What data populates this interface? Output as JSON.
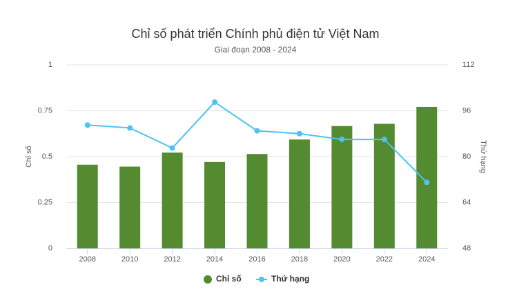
{
  "chart_data": {
    "type": "bar-line",
    "title": "Chỉ số phát triển Chính phủ điện tử Việt Nam",
    "subtitle": "Giai đoạn 2008 - 2024",
    "y_label": "Chỉ số",
    "y2_label": "Thứ hạng",
    "categories": [
      "2008",
      "2010",
      "2012",
      "2014",
      "2016",
      "2018",
      "2020",
      "2022",
      "2024"
    ],
    "series": [
      {
        "name": "Chỉ số",
        "type": "bar",
        "color": "#548b30",
        "values": [
          0.4558,
          0.4454,
          0.5217,
          0.4705,
          0.5143,
          0.5931,
          0.6667,
          0.6787,
          0.7709
        ]
      },
      {
        "name": "Thứ hạng",
        "type": "line",
        "axis": "y2",
        "color": "#4cc3f2",
        "values": [
          91,
          90,
          83,
          99,
          89,
          88,
          86,
          86,
          71
        ]
      }
    ],
    "ylim": [
      0,
      1
    ],
    "yticks": [
      0,
      0.25,
      0.5,
      0.75,
      1
    ],
    "y2lim": [
      48,
      112
    ],
    "y2ticks": [
      48,
      64,
      80,
      96,
      112
    ],
    "grid": true,
    "legend": "bottom"
  }
}
